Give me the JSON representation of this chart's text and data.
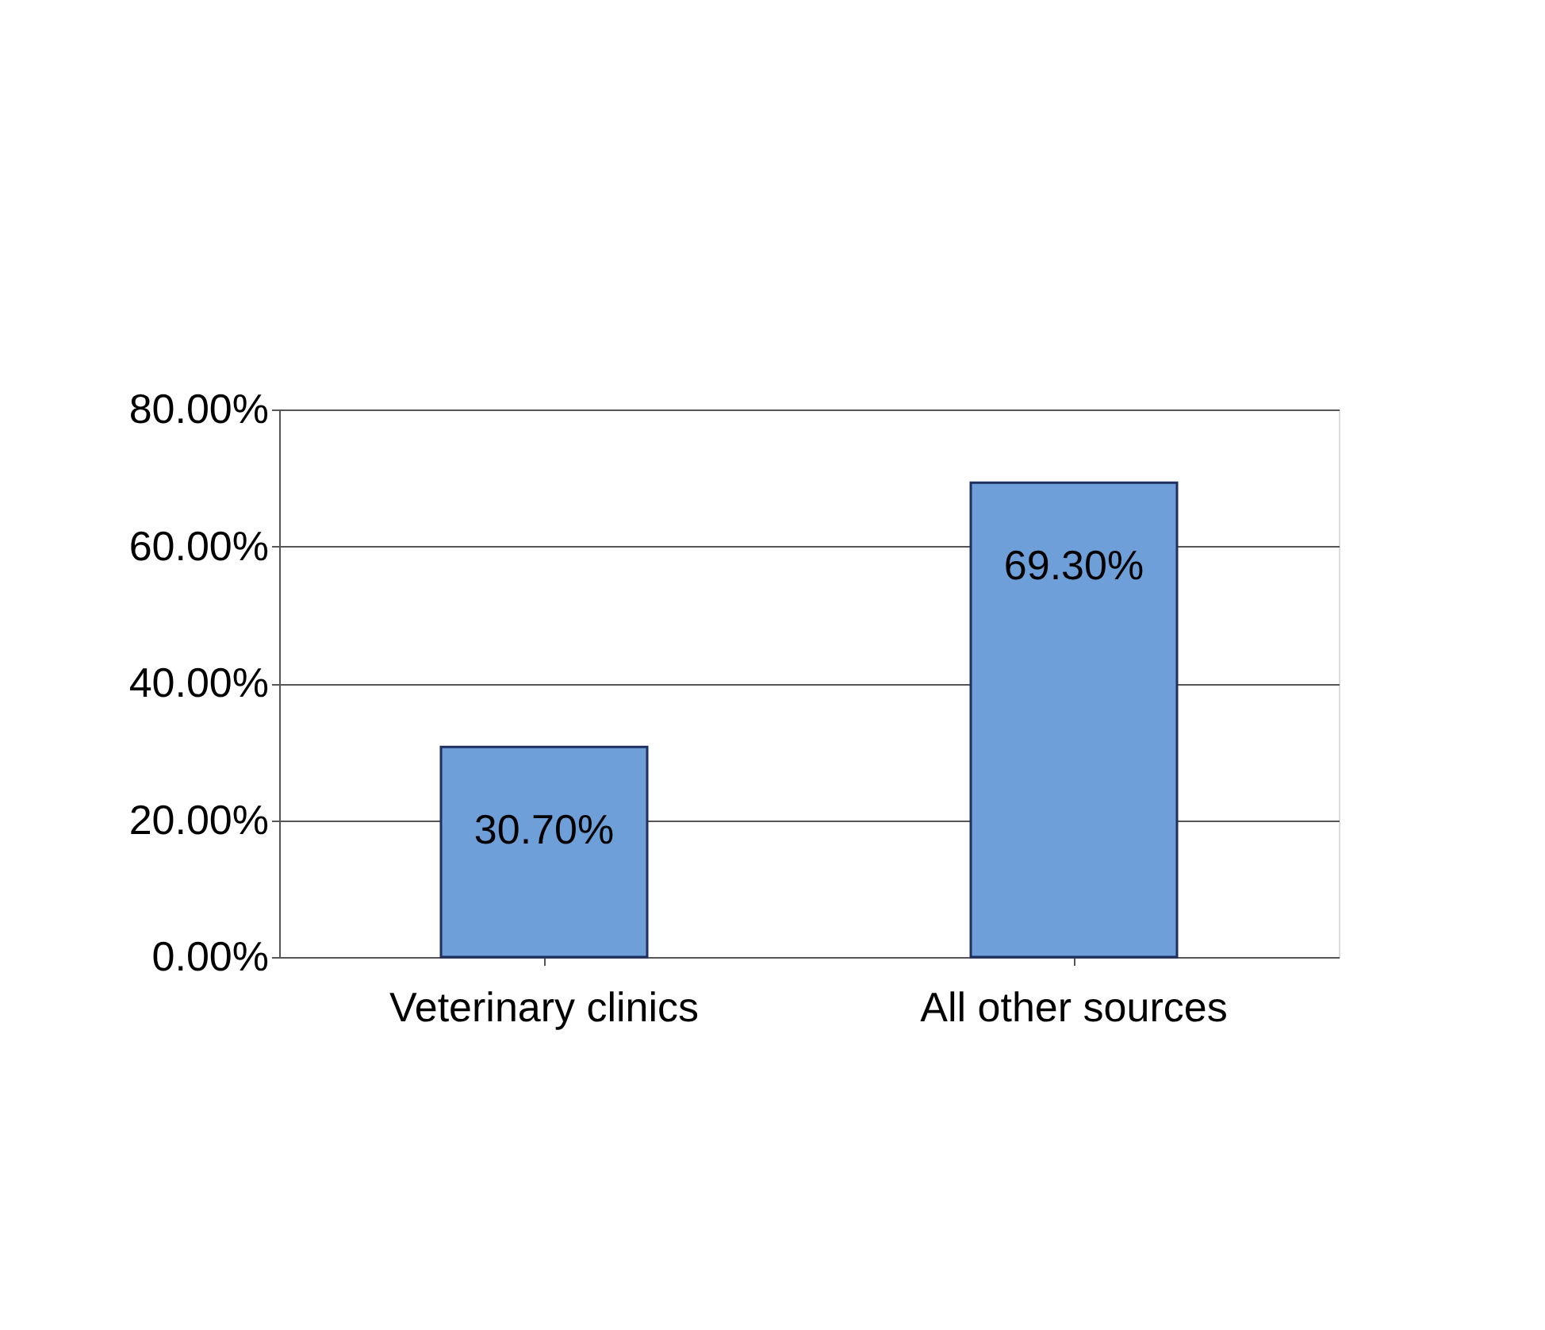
{
  "chart_data": {
    "type": "bar",
    "categories": [
      "Veterinary clinics",
      "All other sources"
    ],
    "values": [
      30.7,
      69.3
    ],
    "color": "#6f9fd8",
    "value_labels": [
      "30.70%",
      "69.30%"
    ],
    "ylim": [
      0,
      80
    ],
    "yticks": [
      {
        "value": 0,
        "label": "0.00%"
      },
      {
        "value": 20,
        "label": "20.00%"
      },
      {
        "value": 40,
        "label": "40.00%"
      },
      {
        "value": 60,
        "label": "60.00%"
      },
      {
        "value": 80,
        "label": "80.00%"
      }
    ],
    "grid": "y"
  }
}
